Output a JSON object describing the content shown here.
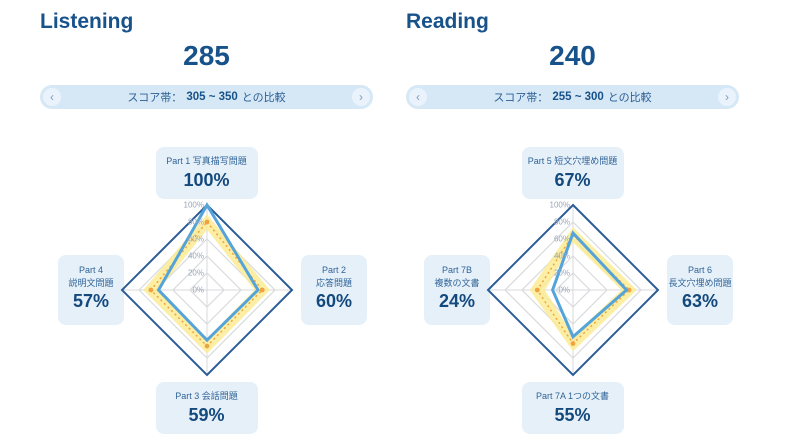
{
  "colors": {
    "accent_navy": "#17528a",
    "outer_diamond": "#2b5c97",
    "score_line_blue": "#55a4d9",
    "comparison_orange": "#f0a43e",
    "band_yellow": "#fbeb8f",
    "grid_gray": "#d8dadc",
    "tick_gray": "#98a4b6",
    "box_bg": "#e6f0f9",
    "pill_bg": "#d6e8f6"
  },
  "panels": [
    {
      "title": "Listening",
      "score": "285",
      "score_band": {
        "prefix": "スコア帯：",
        "range": "305 ~ 350",
        "suffix": "との比較"
      }
    },
    {
      "title": "Reading",
      "score": "240",
      "score_band": {
        "prefix": "スコア帯：",
        "range": "255 ~ 300",
        "suffix": "との比較"
      }
    }
  ],
  "chart_data": [
    {
      "type": "radar",
      "panel": "Listening",
      "max": 100,
      "ticks": [
        "0%",
        "20%",
        "40%",
        "60%",
        "80%",
        "100%"
      ],
      "axes": [
        {
          "position": "top",
          "label_lines": [
            "Part 1 写真描写問題"
          ],
          "value": 100,
          "value_label": "100%"
        },
        {
          "position": "right",
          "label_lines": [
            "Part 2",
            "応答問題"
          ],
          "value": 60,
          "value_label": "60%"
        },
        {
          "position": "bottom",
          "label_lines": [
            "Part 3 会話問題"
          ],
          "value": 59,
          "value_label": "59%"
        },
        {
          "position": "left",
          "label_lines": [
            "Part 4",
            "説明文問題"
          ],
          "value": 57,
          "value_label": "57%"
        }
      ],
      "series": [
        {
          "name": "user_score",
          "values": [
            100,
            60,
            59,
            57
          ]
        },
        {
          "name": "comparison_average",
          "values": [
            80,
            65,
            66,
            66
          ]
        }
      ],
      "comparison_band": {
        "low": [
          71,
          56,
          57,
          57
        ],
        "high": [
          89,
          74,
          75,
          75
        ]
      }
    },
    {
      "type": "radar",
      "panel": "Reading",
      "max": 100,
      "ticks": [
        "0%",
        "20%",
        "40%",
        "60%",
        "80%",
        "100%"
      ],
      "axes": [
        {
          "position": "top",
          "label_lines": [
            "Part 5 短文穴埋め問題"
          ],
          "value": 67,
          "value_label": "67%"
        },
        {
          "position": "right",
          "label_lines": [
            "Part 6",
            "長文穴埋め問題"
          ],
          "value": 63,
          "value_label": "63%"
        },
        {
          "position": "bottom",
          "label_lines": [
            "Part 7A 1つの文書"
          ],
          "value": 55,
          "value_label": "55%"
        },
        {
          "position": "left",
          "label_lines": [
            "Part 7B",
            "複数の文書"
          ],
          "value": 24,
          "value_label": "24%"
        }
      ],
      "series": [
        {
          "name": "user_score",
          "values": [
            67,
            63,
            55,
            24
          ]
        },
        {
          "name": "comparison_average",
          "values": [
            65,
            66,
            63,
            42
          ]
        }
      ],
      "comparison_band": {
        "low": [
          56,
          57,
          54,
          33
        ],
        "high": [
          74,
          75,
          72,
          51
        ]
      }
    }
  ]
}
